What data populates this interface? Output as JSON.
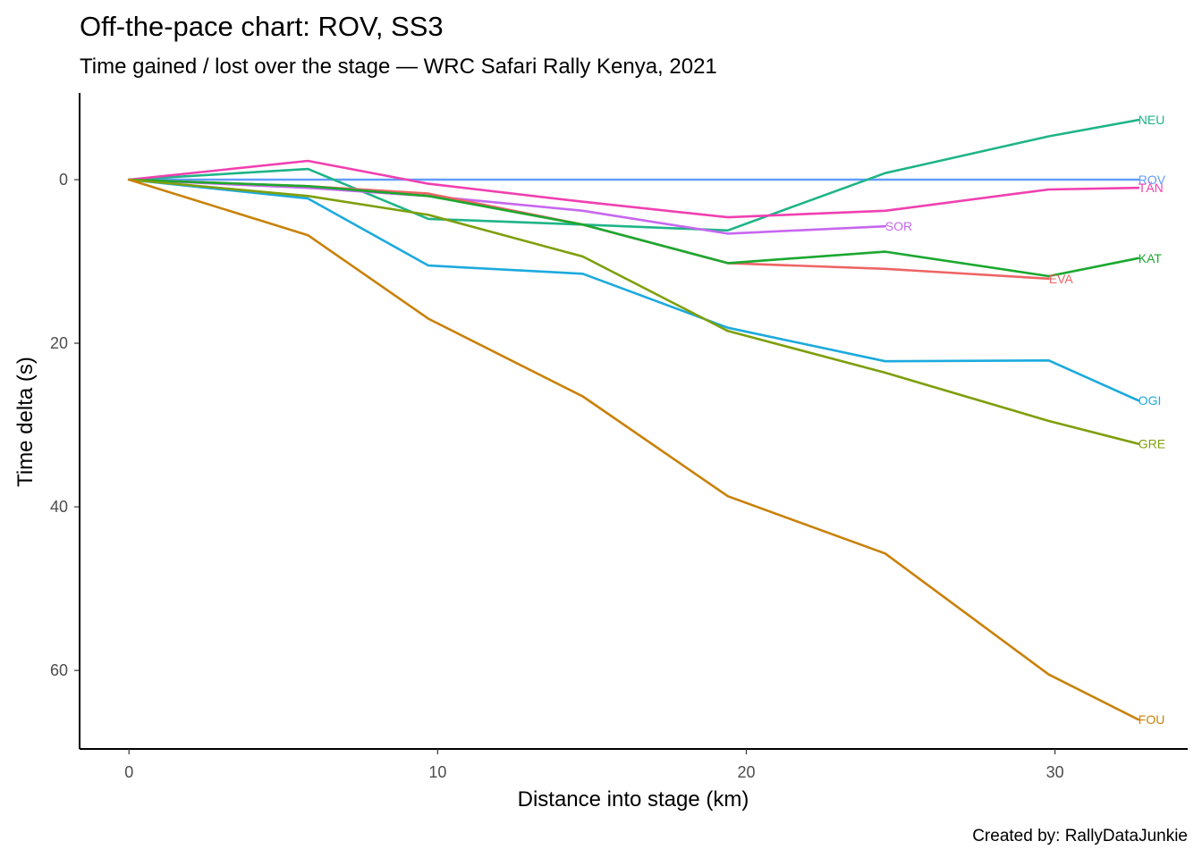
{
  "chart_data": {
    "type": "line",
    "title": "Off-the-pace chart: ROV, SS3",
    "subtitle": "Time gained / lost over the stage — WRC Safari Rally Kenya, 2021",
    "caption": "Created by: RallyDataJunkie",
    "xlabel": "Distance into stage (km)",
    "ylabel": "Time delta (s)",
    "xlim": [
      -1.6,
      34.3
    ],
    "ylim": [
      -10.6,
      69.6
    ],
    "y_reversed": true,
    "x_ticks": [
      0,
      10,
      20,
      30
    ],
    "y_ticks": [
      0,
      20,
      40,
      60
    ],
    "grid": false,
    "legend": "none (direct labels at line ends)",
    "series": [
      {
        "name": "ROV",
        "color": "#619CFF",
        "x": [
          0,
          32.7
        ],
        "y": [
          0,
          0
        ]
      },
      {
        "name": "NEU",
        "color": "#1FB488",
        "x": [
          0,
          5.8,
          9.7,
          14.7,
          19.4,
          24.5,
          29.8,
          32.7
        ],
        "y": [
          0,
          -1.3,
          4.8,
          5.5,
          6.2,
          -0.8,
          -5.3,
          -7.3
        ]
      },
      {
        "name": "TÄN",
        "color": "#F040B0",
        "x": [
          0,
          5.8,
          9.7,
          14.7,
          19.4,
          24.5,
          29.8,
          32.7
        ],
        "y": [
          0,
          -2.3,
          0.5,
          2.7,
          4.6,
          3.8,
          1.2,
          1.0
        ]
      },
      {
        "name": "SOR",
        "color": "#C767F0",
        "x": [
          0,
          5.8,
          9.7,
          14.7,
          19.4,
          24.5
        ],
        "y": [
          0,
          1.0,
          2.0,
          3.8,
          6.6,
          5.7
        ]
      },
      {
        "name": "EVA",
        "color": "#EE6465",
        "x": [
          0,
          5.8,
          9.7,
          14.7,
          19.4,
          24.5,
          29.8
        ],
        "y": [
          0,
          0.8,
          1.7,
          5.5,
          10.2,
          10.9,
          12.1
        ]
      },
      {
        "name": "KAT",
        "color": "#1BA82F",
        "x": [
          0,
          5.8,
          9.7,
          14.7,
          19.4,
          24.5,
          29.8,
          32.7
        ],
        "y": [
          0,
          0.8,
          2.0,
          5.5,
          10.2,
          8.8,
          11.8,
          9.6
        ]
      },
      {
        "name": "OGI",
        "color": "#1CAADD",
        "x": [
          0,
          5.8,
          9.7,
          14.7,
          19.4,
          24.5,
          29.8,
          32.7
        ],
        "y": [
          0,
          2.3,
          10.5,
          11.5,
          18.1,
          22.2,
          22.1,
          27.0
        ]
      },
      {
        "name": "GRE",
        "color": "#7E9F0B",
        "x": [
          0,
          5.8,
          9.7,
          14.7,
          19.4,
          24.5,
          29.8,
          32.7
        ],
        "y": [
          0,
          2.0,
          4.3,
          9.4,
          18.5,
          23.6,
          29.5,
          32.3
        ]
      },
      {
        "name": "FOU",
        "color": "#C98108",
        "x": [
          0,
          5.8,
          9.7,
          14.7,
          19.4,
          24.5,
          29.8,
          32.7
        ],
        "y": [
          0,
          6.8,
          17.0,
          26.5,
          38.7,
          45.7,
          60.5,
          66.0
        ]
      }
    ]
  }
}
